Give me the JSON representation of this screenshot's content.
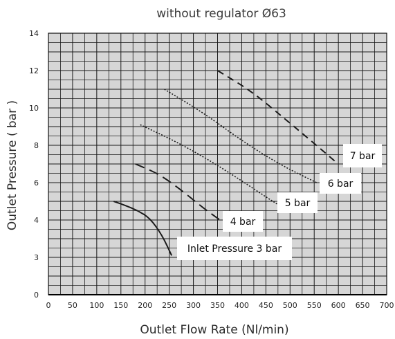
{
  "chart_data": {
    "type": "line",
    "title": "without regulator Ø63",
    "xlabel": "Outlet Flow Rate (Nl/min)",
    "ylabel": "Outlet Pressure ( bar )",
    "x_ticks": [
      "0",
      "50",
      "100",
      "150",
      "200",
      "250",
      "300",
      "350",
      "400",
      "450",
      "500",
      "550",
      "600",
      "650",
      "700"
    ],
    "y_ticks": [
      "0",
      "3",
      "4",
      "6",
      "8",
      "10",
      "12",
      "14"
    ],
    "xlim": [
      0,
      700
    ],
    "grid": true,
    "series": [
      {
        "name": "Inlet Pressure 3 bar",
        "style": "solid",
        "points": [
          [
            135,
            5.0
          ],
          [
            160,
            4.77
          ],
          [
            185,
            4.5
          ],
          [
            210,
            4.1
          ],
          [
            235,
            3.6
          ],
          [
            255,
            3.05
          ]
        ]
      },
      {
        "name": "4 bar",
        "style": "long-dash",
        "points": [
          [
            180,
            7.0
          ],
          [
            230,
            6.45
          ],
          [
            280,
            5.5
          ],
          [
            320,
            4.65
          ],
          [
            355,
            4.0
          ]
        ]
      },
      {
        "name": "5 bar",
        "style": "dotted",
        "points": [
          [
            190,
            9.1
          ],
          [
            260,
            8.25
          ],
          [
            330,
            7.25
          ],
          [
            400,
            6.1
          ],
          [
            455,
            5.15
          ],
          [
            480,
            4.75
          ]
        ]
      },
      {
        "name": "6 bar",
        "style": "dotted",
        "points": [
          [
            240,
            11.0
          ],
          [
            320,
            9.75
          ],
          [
            400,
            8.25
          ],
          [
            480,
            6.95
          ],
          [
            555,
            6.0
          ]
        ]
      },
      {
        "name": "7 bar",
        "style": "dashed",
        "points": [
          [
            350,
            12.0
          ],
          [
            420,
            10.9
          ],
          [
            490,
            9.4
          ],
          [
            550,
            8.1
          ],
          [
            595,
            7.1
          ]
        ]
      }
    ],
    "annotations": [
      "Inlet Pressure 3 bar",
      "4 bar",
      "5 bar",
      "6 bar",
      "7 bar"
    ]
  }
}
